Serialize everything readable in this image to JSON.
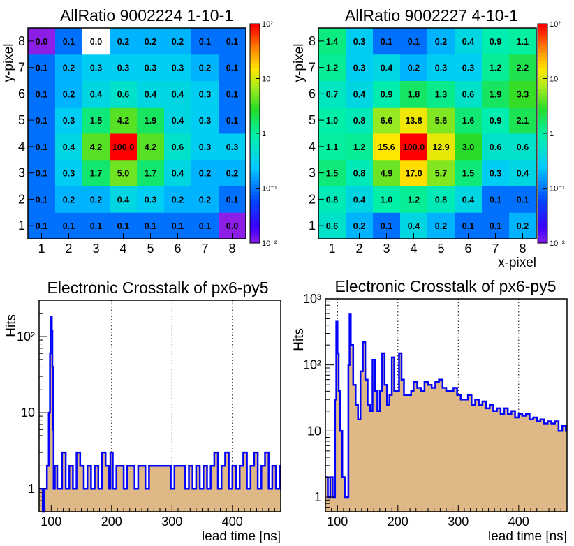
{
  "colors": {
    "hist_line": "#0000ff",
    "hist_fill": "#deb887",
    "frame": "#000000"
  },
  "chart_data": [
    {
      "type": "heatmap",
      "title": "AllRatio   9002224   1-10-1",
      "xlabel": "",
      "ylabel": "y-pixel",
      "x_categories": [
        "1",
        "2",
        "3",
        "4",
        "5",
        "6",
        "7",
        "8"
      ],
      "y_categories": [
        "1",
        "2",
        "3",
        "4",
        "5",
        "6",
        "7",
        "8"
      ],
      "color_scale": "log",
      "color_range": [
        0.01,
        100
      ],
      "colorbar_labels": [
        "10²",
        "10",
        "1",
        "10⁻¹",
        "10⁻²"
      ],
      "values": [
        [
          0.1,
          0.1,
          0.1,
          0.1,
          0.1,
          0.1,
          0.1,
          0.0
        ],
        [
          0.1,
          0.2,
          0.2,
          0.4,
          0.3,
          0.2,
          0.2,
          0.1
        ],
        [
          0.1,
          0.3,
          1.7,
          5.0,
          1.7,
          0.4,
          0.2,
          0.2
        ],
        [
          0.1,
          0.4,
          4.2,
          100.0,
          4.2,
          0.6,
          0.3,
          0.3
        ],
        [
          0.1,
          0.3,
          1.5,
          4.2,
          1.9,
          0.4,
          0.3,
          0.1
        ],
        [
          0.1,
          0.2,
          0.4,
          0.6,
          0.4,
          0.4,
          0.3,
          0.1
        ],
        [
          0.1,
          0.2,
          0.3,
          0.3,
          0.3,
          0.3,
          0.2,
          0.1
        ],
        [
          0.0,
          0.1,
          0.0,
          0.2,
          0.2,
          0.2,
          0.1,
          0.1
        ]
      ],
      "empty_cells": [
        [
          7,
          2
        ]
      ]
    },
    {
      "type": "heatmap",
      "title": "AllRatio   9002227   4-10-1",
      "xlabel": "x-pixel",
      "ylabel": "y-pixel",
      "x_categories": [
        "1",
        "2",
        "3",
        "4",
        "5",
        "6",
        "7",
        "8"
      ],
      "y_categories": [
        "1",
        "2",
        "3",
        "4",
        "5",
        "6",
        "7",
        "8"
      ],
      "color_scale": "log",
      "color_range": [
        0.01,
        100
      ],
      "colorbar_labels": [
        "10²",
        "10",
        "1",
        "10⁻¹",
        "10⁻²"
      ],
      "values": [
        [
          0.6,
          0.2,
          0.1,
          0.4,
          0.2,
          0.1,
          0.1,
          0.2
        ],
        [
          0.8,
          0.4,
          1.0,
          1.2,
          0.8,
          0.4,
          0.1,
          0.1
        ],
        [
          1.5,
          0.8,
          4.9,
          17.0,
          5.7,
          1.5,
          0.3,
          0.4
        ],
        [
          1.1,
          1.2,
          15.6,
          100.0,
          12.9,
          3.0,
          0.6,
          0.6
        ],
        [
          1.0,
          0.8,
          6.6,
          13.8,
          5.6,
          1.6,
          0.9,
          2.1
        ],
        [
          0.7,
          0.4,
          0.9,
          1.8,
          1.3,
          0.6,
          1.9,
          3.3
        ],
        [
          1.2,
          0.3,
          0.4,
          0.2,
          0.3,
          0.3,
          1.2,
          2.2
        ],
        [
          1.4,
          0.3,
          0.1,
          0.1,
          0.2,
          0.4,
          0.9,
          1.1
        ]
      ],
      "empty_cells": []
    },
    {
      "type": "area",
      "title": "Electronic Crosstalk of px6-py5",
      "xlabel": "lead time  [ns]",
      "ylabel": "Hits",
      "xlim": [
        80,
        480
      ],
      "ylim": [
        0.5,
        300
      ],
      "yscale": "log",
      "grid": "vertical dotted at 200, 300, 400",
      "x_ticks": [
        100,
        200,
        300,
        400
      ],
      "y_ticks": [
        "1",
        "10",
        "10²"
      ],
      "series": [
        {
          "x": [
            80,
            86,
            88,
            93,
            96,
            98,
            99,
            100,
            101,
            102,
            103,
            104,
            106,
            110,
            114,
            118,
            124,
            130,
            136,
            142,
            148,
            154,
            160,
            166,
            172,
            178,
            184,
            190,
            196,
            198,
            202,
            208,
            214,
            220,
            226,
            232,
            238,
            244,
            250,
            256,
            262,
            268,
            274,
            280,
            286,
            292,
            298,
            304,
            310,
            316,
            322,
            328,
            334,
            340,
            346,
            352,
            358,
            364,
            370,
            376,
            382,
            388,
            394,
            400,
            406,
            412,
            418,
            424,
            430,
            436,
            442,
            448,
            454,
            460,
            466,
            472,
            478
          ],
          "y": [
            1,
            0,
            1,
            2,
            10,
            60,
            150,
            180,
            120,
            40,
            6,
            1,
            2,
            1,
            1,
            3,
            1,
            2,
            1,
            3,
            2,
            1,
            2,
            1,
            2,
            1,
            3,
            2,
            1,
            3,
            1,
            2,
            2,
            1,
            2,
            2,
            1,
            2,
            2,
            1,
            2,
            2,
            2,
            2,
            2,
            2,
            1,
            2,
            2,
            2,
            1,
            2,
            1,
            2,
            1,
            2,
            1,
            2,
            3,
            1,
            2,
            3,
            1,
            2,
            1,
            2,
            3,
            1,
            2,
            3,
            1,
            2,
            3,
            1,
            2,
            1,
            2
          ]
        }
      ]
    },
    {
      "type": "area",
      "title": "Electronic Crosstalk of px6-py5",
      "xlabel": "lead time  [ns]",
      "ylabel": "Hits",
      "xlim": [
        80,
        480
      ],
      "ylim": [
        0.6,
        1000
      ],
      "yscale": "log",
      "grid": "vertical dotted at 100, 200, 300, 400",
      "x_ticks": [
        100,
        200,
        300,
        400
      ],
      "y_ticks": [
        "1",
        "10",
        "10²",
        "10³"
      ],
      "series": [
        {
          "x": [
            80,
            84,
            88,
            92,
            96,
            98,
            100,
            102,
            104,
            108,
            112,
            116,
            118,
            120,
            122,
            126,
            130,
            134,
            138,
            142,
            146,
            150,
            154,
            158,
            162,
            166,
            170,
            174,
            178,
            182,
            186,
            190,
            194,
            198,
            202,
            206,
            210,
            214,
            218,
            222,
            226,
            232,
            238,
            244,
            250,
            256,
            262,
            268,
            274,
            280,
            286,
            292,
            298,
            304,
            310,
            316,
            322,
            328,
            334,
            340,
            346,
            352,
            358,
            364,
            370,
            376,
            382,
            388,
            394,
            400,
            406,
            412,
            418,
            424,
            430,
            436,
            442,
            448,
            454,
            460,
            466,
            472,
            478
          ],
          "y": [
            2,
            1,
            2,
            1,
            30,
            450,
            150,
            40,
            10,
            2,
            1,
            1,
            100,
            580,
            200,
            50,
            25,
            15,
            80,
            220,
            60,
            25,
            20,
            120,
            40,
            20,
            40,
            150,
            50,
            25,
            35,
            130,
            40,
            40,
            150,
            60,
            35,
            35,
            35,
            40,
            55,
            45,
            40,
            55,
            50,
            45,
            55,
            60,
            45,
            40,
            40,
            45,
            35,
            30,
            30,
            35,
            25,
            30,
            25,
            28,
            22,
            25,
            20,
            22,
            18,
            22,
            18,
            20,
            16,
            18,
            17,
            18,
            15,
            16,
            14,
            15,
            13,
            14,
            13,
            14,
            10,
            12,
            10
          ]
        }
      ]
    }
  ]
}
